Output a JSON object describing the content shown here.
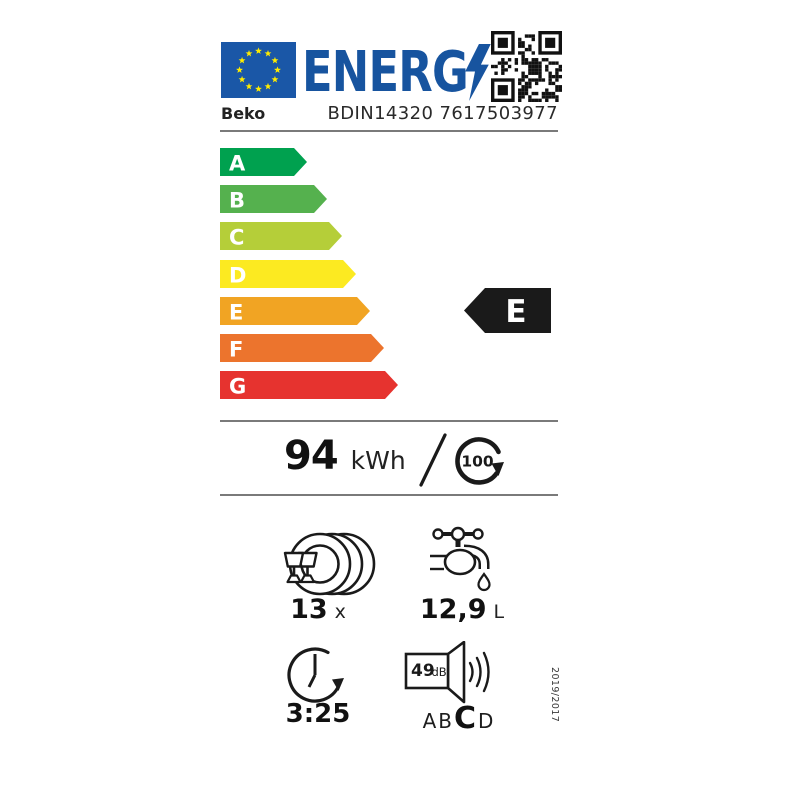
{
  "colors": {
    "flag_blue": "#1a57a7",
    "star_yellow": "#ffec00",
    "logo_blue": "#17549f",
    "ink": "#1a1a1a",
    "line": "#7a7a7a"
  },
  "header": {
    "logo_text": "ENERG",
    "brand": "Beko",
    "model": "BDIN14320 7617503977"
  },
  "energy_scale": {
    "classes": [
      {
        "label": "A",
        "color": "#00a14f"
      },
      {
        "label": "B",
        "color": "#55b14e"
      },
      {
        "label": "C",
        "color": "#b5ce39"
      },
      {
        "label": "D",
        "color": "#fcea21"
      },
      {
        "label": "E",
        "color": "#f1a423"
      },
      {
        "label": "F",
        "color": "#ec742d"
      },
      {
        "label": "G",
        "color": "#e6332f"
      }
    ],
    "rated_class": "E"
  },
  "consumption": {
    "energy_value": "94",
    "energy_unit": "kWh",
    "per_cycles": "100"
  },
  "metrics": {
    "capacity_value": "13",
    "capacity_unit": "x",
    "water_value": "12,9",
    "water_unit": "L",
    "duration": "3:25",
    "noise_value": "49",
    "noise_unit": "dB",
    "noise_classes": [
      "A",
      "B",
      "C",
      "D"
    ],
    "noise_rated_class": "C"
  },
  "regulation": "2019/2017",
  "icons": {
    "eu-flag-icon": "blue rectangle with 12 yellow stars",
    "lightning-bolt-icon": "blue lightning bolt after ENERG",
    "qr-code": "QR code top right",
    "place-settings-icon": "plates and glasses",
    "water-tap-icon": "faucet with droplet",
    "per-cycles-icon": "circular arrow around 100",
    "eco-duration-icon": "clock with circular arrow",
    "noise-icon": "speaker with sound waves",
    "rated-class-arrow": "black left-pointing arrow with class letter"
  }
}
